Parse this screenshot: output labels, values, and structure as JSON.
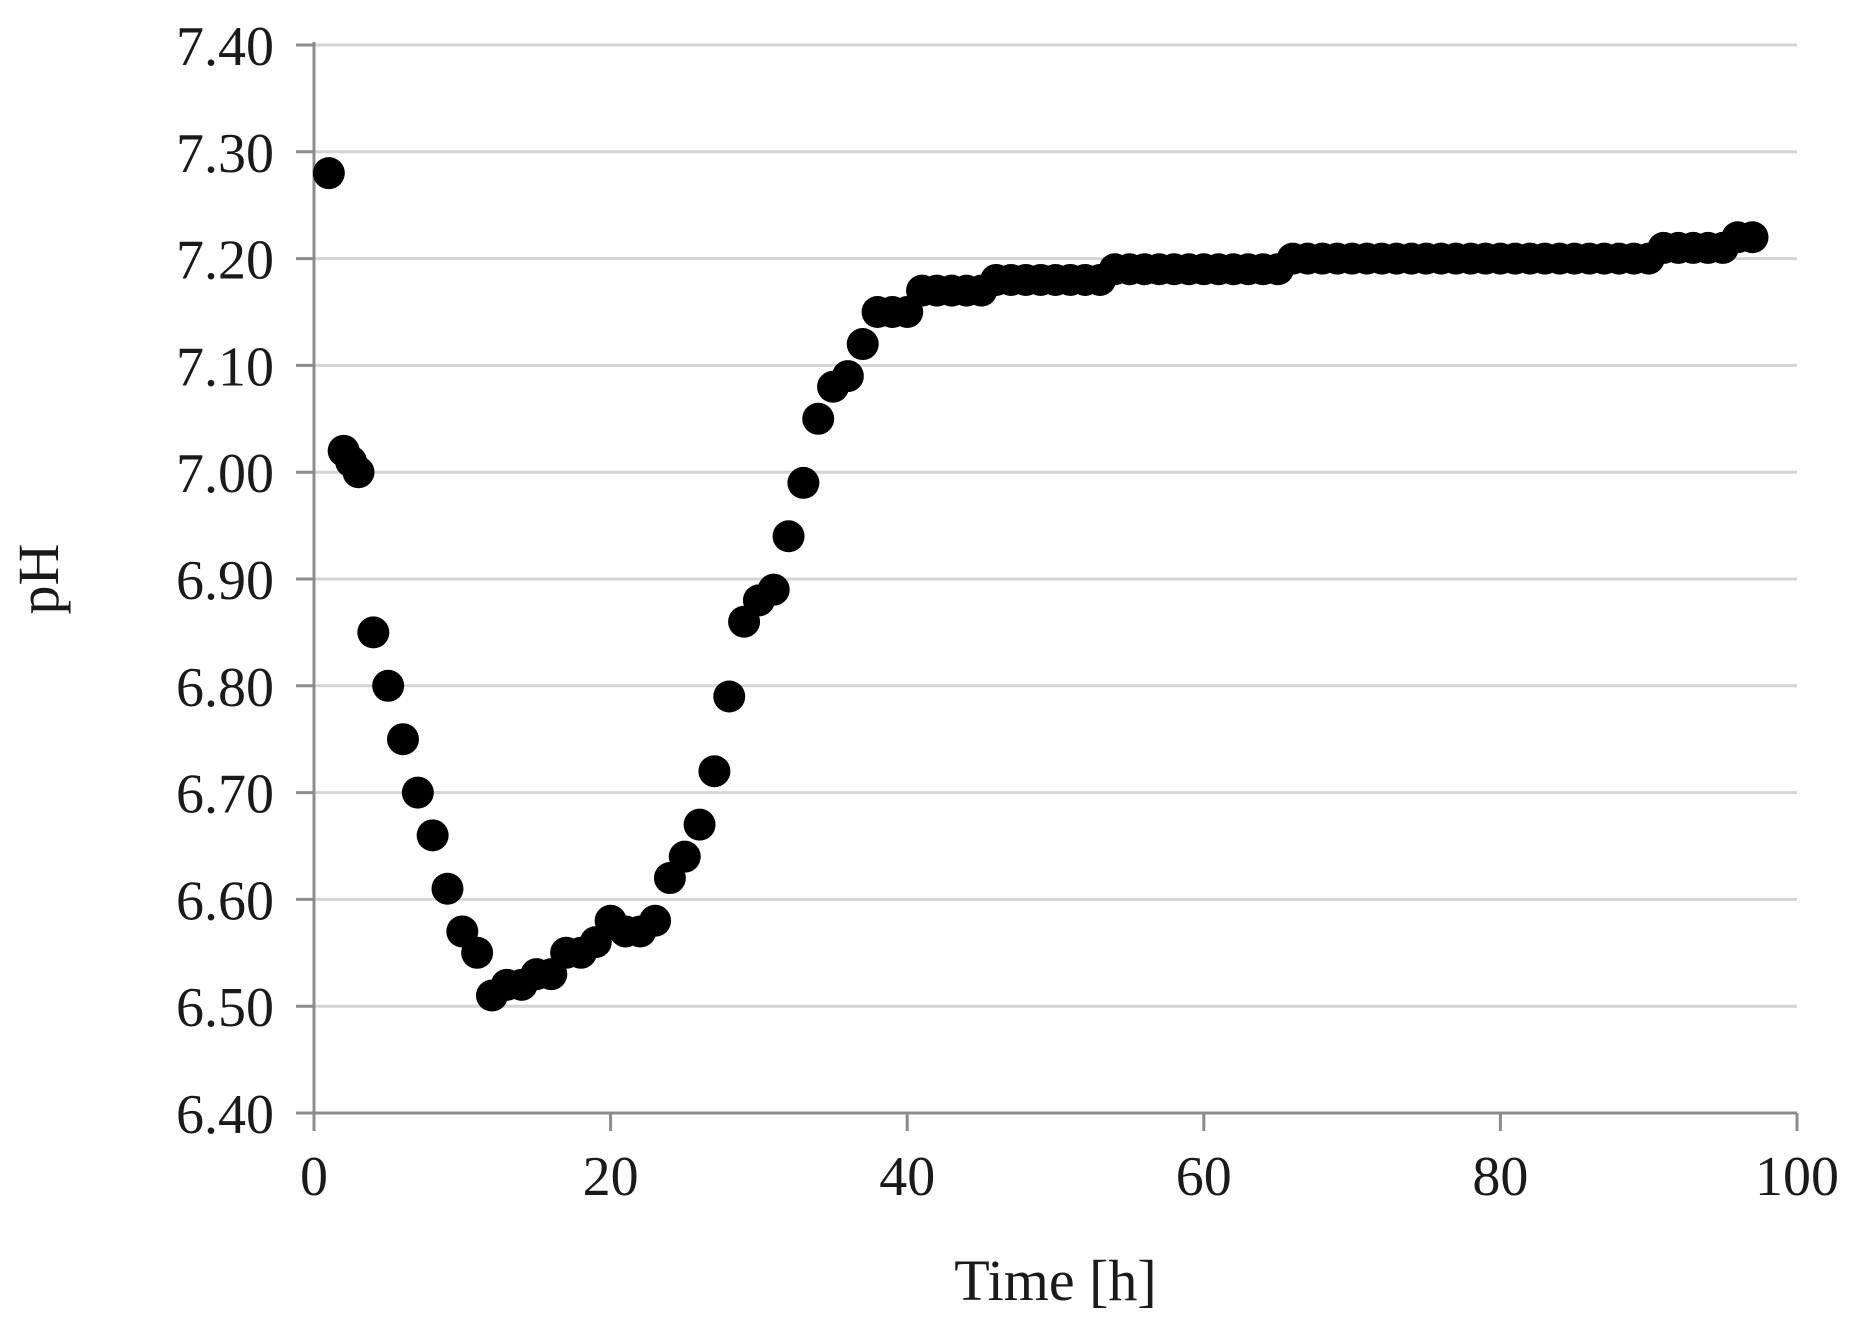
{
  "chart_data": {
    "type": "scatter",
    "title": "",
    "xlabel": "Time [h]",
    "ylabel": "pH",
    "xlim": [
      0,
      100
    ],
    "ylim": [
      6.4,
      7.4
    ],
    "x_ticks": [
      "0",
      "20",
      "40",
      "60",
      "80",
      "100"
    ],
    "y_ticks": [
      "6.40",
      "6.50",
      "6.60",
      "6.70",
      "6.80",
      "6.90",
      "7.00",
      "7.10",
      "7.20",
      "7.30",
      "7.40"
    ],
    "grid": "horizontal",
    "legend": "none",
    "marker_color": "#000000",
    "gridline_color": "#d4d4d4",
    "axis_color": "#8c8c8c",
    "series": [
      {
        "x": [
          1,
          2,
          2.5,
          3,
          4,
          5,
          6,
          7,
          8,
          9,
          10,
          11,
          12,
          13,
          14,
          15,
          16,
          17,
          18,
          19,
          20,
          21,
          22,
          23,
          24,
          25,
          26,
          27,
          28,
          29,
          30,
          31,
          32,
          33,
          34,
          35,
          36,
          37,
          38,
          39,
          40,
          41,
          42,
          43,
          44,
          45,
          46,
          47,
          48,
          49,
          50,
          51,
          52,
          53,
          54,
          55,
          56,
          57,
          58,
          59,
          60,
          61,
          62,
          63,
          64,
          65,
          66,
          67,
          68,
          69,
          70,
          71,
          72,
          73,
          74,
          75,
          76,
          77,
          78,
          79,
          80,
          81,
          82,
          83,
          84,
          85,
          86,
          87,
          88,
          89,
          90,
          91,
          92,
          93,
          94,
          95,
          96,
          97
        ],
        "y": [
          7.28,
          7.02,
          7.01,
          7.0,
          6.85,
          6.8,
          6.75,
          6.7,
          6.66,
          6.61,
          6.57,
          6.55,
          6.51,
          6.52,
          6.52,
          6.53,
          6.53,
          6.55,
          6.55,
          6.56,
          6.58,
          6.57,
          6.57,
          6.58,
          6.62,
          6.64,
          6.67,
          6.72,
          6.79,
          6.86,
          6.88,
          6.89,
          6.94,
          6.99,
          7.05,
          7.08,
          7.09,
          7.12,
          7.15,
          7.15,
          7.15,
          7.17,
          7.17,
          7.17,
          7.17,
          7.17,
          7.18,
          7.18,
          7.18,
          7.18,
          7.18,
          7.18,
          7.18,
          7.18,
          7.19,
          7.19,
          7.19,
          7.19,
          7.19,
          7.19,
          7.19,
          7.19,
          7.19,
          7.19,
          7.19,
          7.19,
          7.2,
          7.2,
          7.2,
          7.2,
          7.2,
          7.2,
          7.2,
          7.2,
          7.2,
          7.2,
          7.2,
          7.2,
          7.2,
          7.2,
          7.2,
          7.2,
          7.2,
          7.2,
          7.2,
          7.2,
          7.2,
          7.2,
          7.2,
          7.2,
          7.2,
          7.21,
          7.21,
          7.21,
          7.21,
          7.21,
          7.22,
          7.22
        ]
      }
    ]
  }
}
